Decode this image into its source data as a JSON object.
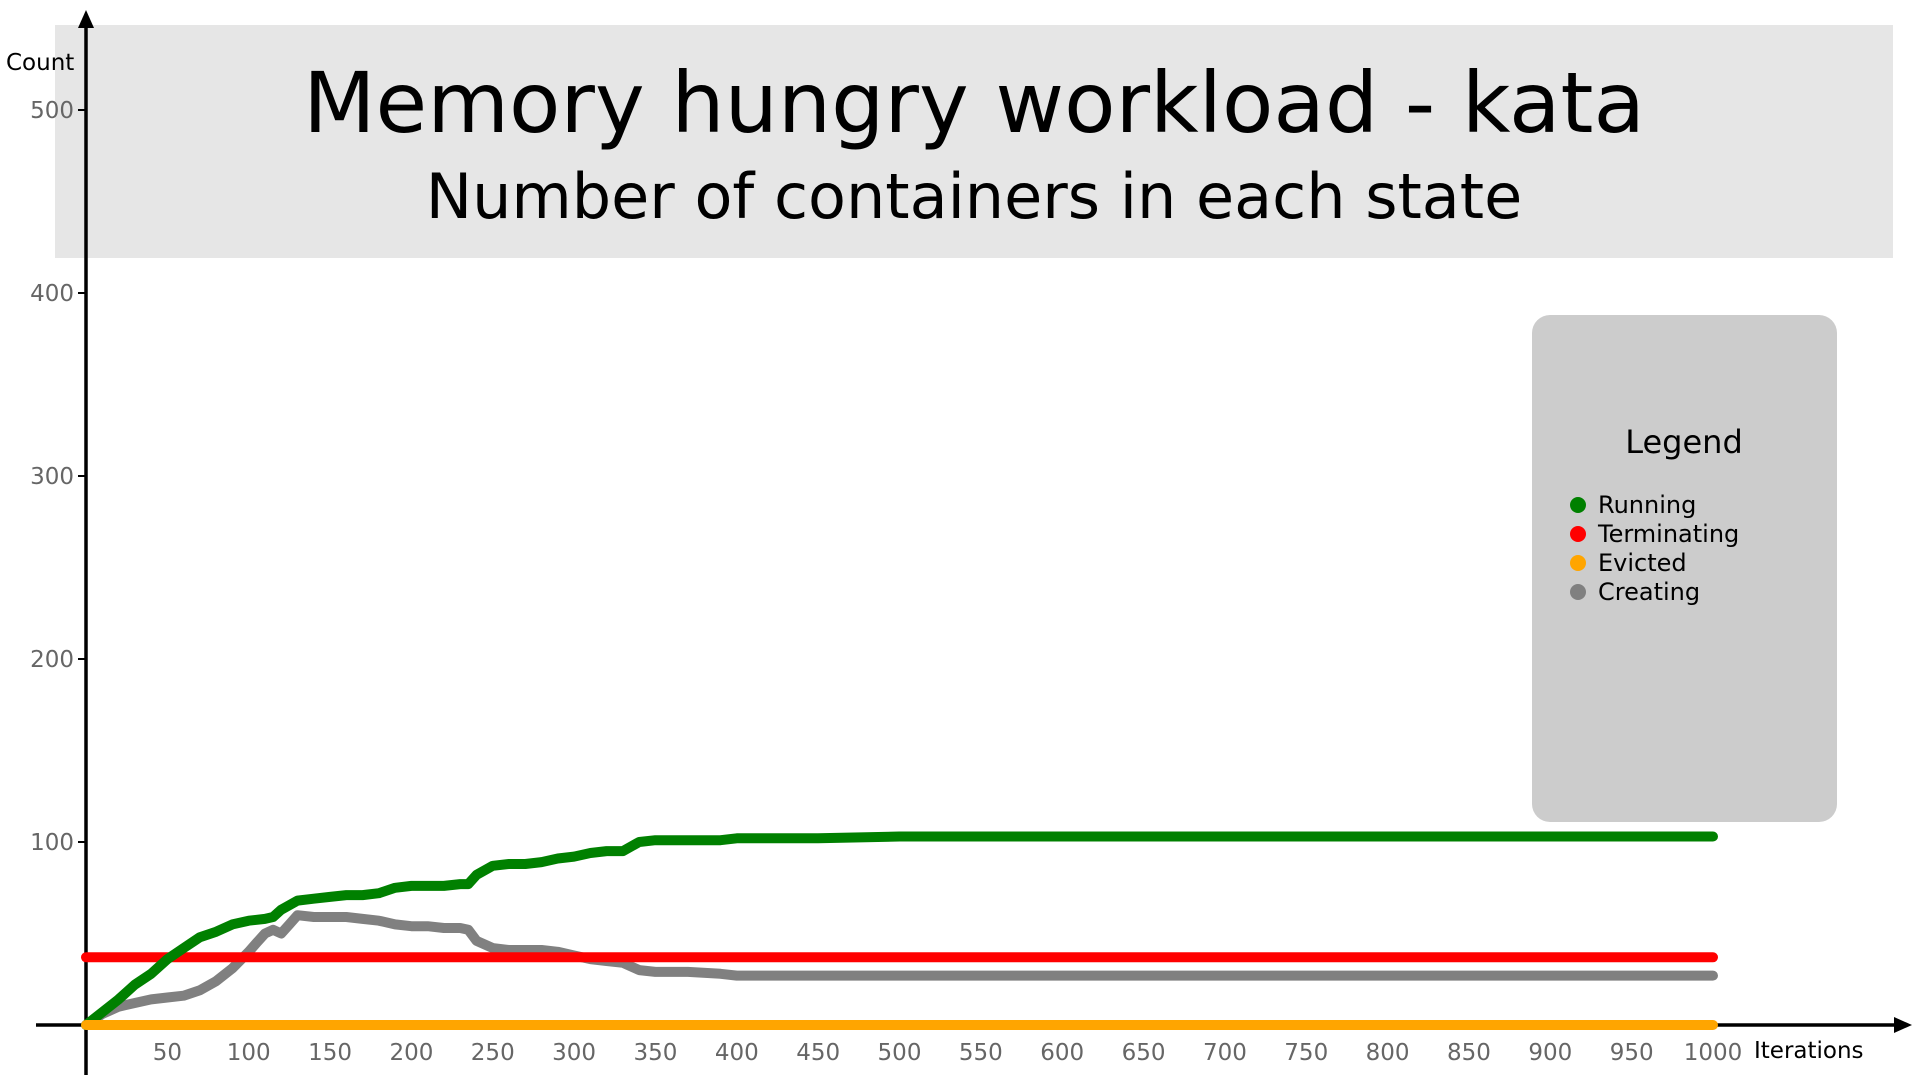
{
  "chart_data": {
    "type": "line",
    "title": "Memory hungry workload - kata",
    "subtitle": "Number of containers in each state",
    "xlabel": "Iterations",
    "ylabel": "Count",
    "xlim": [
      0,
      1000
    ],
    "ylim": [
      0,
      500
    ],
    "x_ticks": [
      "50",
      "100",
      "150",
      "200",
      "250",
      "300",
      "350",
      "400",
      "450",
      "500",
      "550",
      "600",
      "650",
      "700",
      "750",
      "800",
      "850",
      "900",
      "950",
      "1000"
    ],
    "y_ticks": [
      "100",
      "200",
      "300",
      "400",
      "500"
    ],
    "grid": false,
    "legend_position": "right",
    "legend_title": "Legend",
    "series": [
      {
        "name": "Running",
        "color": "#008000",
        "x": [
          0,
          10,
          20,
          30,
          40,
          50,
          60,
          70,
          80,
          90,
          100,
          110,
          115,
          120,
          130,
          140,
          150,
          160,
          170,
          180,
          190,
          200,
          210,
          220,
          230,
          235,
          240,
          250,
          260,
          270,
          280,
          290,
          300,
          310,
          320,
          330,
          340,
          350,
          370,
          390,
          400,
          450,
          500,
          600,
          700,
          800,
          900,
          1000
        ],
        "y": [
          0,
          7,
          14,
          22,
          28,
          36,
          42,
          48,
          51,
          55,
          57,
          58,
          59,
          63,
          68,
          69,
          70,
          71,
          71,
          72,
          75,
          76,
          76,
          76,
          77,
          77,
          82,
          87,
          88,
          88,
          89,
          91,
          92,
          94,
          95,
          95,
          100,
          101,
          101,
          101,
          102,
          102,
          103,
          103,
          103,
          103,
          103,
          103
        ]
      },
      {
        "name": "Terminating",
        "color": "#ff0000",
        "x": [
          0,
          1000
        ],
        "y": [
          37,
          37
        ]
      },
      {
        "name": "Evicted",
        "color": "#ffa500",
        "x": [
          0,
          1000
        ],
        "y": [
          0,
          0
        ]
      },
      {
        "name": "Creating",
        "color": "#808080",
        "x": [
          0,
          10,
          20,
          30,
          40,
          50,
          60,
          70,
          80,
          90,
          100,
          105,
          110,
          115,
          120,
          125,
          130,
          140,
          150,
          160,
          170,
          180,
          190,
          200,
          210,
          220,
          230,
          235,
          240,
          250,
          260,
          270,
          280,
          290,
          300,
          310,
          320,
          330,
          340,
          350,
          370,
          390,
          400,
          500,
          600,
          700,
          800,
          900,
          1000
        ],
        "y": [
          0,
          6,
          10,
          12,
          14,
          15,
          16,
          19,
          24,
          31,
          40,
          45,
          50,
          52,
          50,
          55,
          60,
          59,
          59,
          59,
          58,
          57,
          55,
          54,
          54,
          53,
          53,
          52,
          46,
          42,
          41,
          41,
          41,
          40,
          38,
          36,
          35,
          34,
          30,
          29,
          29,
          28,
          27,
          27,
          27,
          27,
          27,
          27,
          27
        ]
      }
    ]
  }
}
